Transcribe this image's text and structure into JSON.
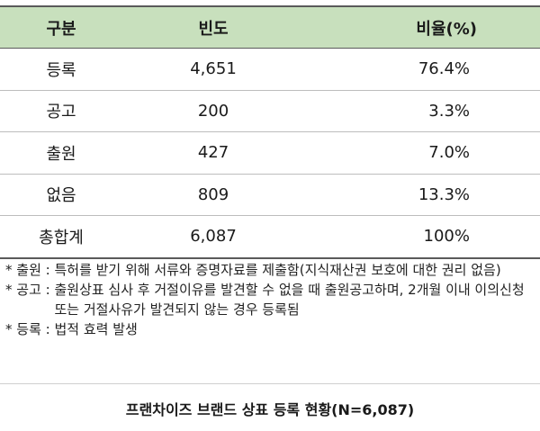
{
  "table": {
    "headers": [
      "구분",
      "빈도",
      "비율(%)"
    ],
    "rows": [
      {
        "label": "등록",
        "freq": "4,651",
        "ratio": "76.4%"
      },
      {
        "label": "공고",
        "freq": "200",
        "ratio": "3.3%"
      },
      {
        "label": "출원",
        "freq": "427",
        "ratio": "7.0%"
      },
      {
        "label": "없음",
        "freq": "809",
        "ratio": "13.3%"
      },
      {
        "label": "총합계",
        "freq": "6,087",
        "ratio": "100%"
      }
    ]
  },
  "notes": [
    {
      "tag": "* 출원 : ",
      "text": "특허를 받기 위해 서류와 증명자료를 제출함(지식재산권 보호에 대한 권리 없음)"
    },
    {
      "tag": "* 공고 : ",
      "text": "출원상표 심사 후 거절이유를 발견할 수 없을 때 출원공고하며, 2개월 이내 이의신청 또는 거절사유가 발견되지 않는 경우 등록됨"
    },
    {
      "tag": "* 등록 : ",
      "text": "법적 효력 발생"
    }
  ],
  "caption": "프랜차이즈 브랜드 상표 등록 현황(N=6,087)"
}
